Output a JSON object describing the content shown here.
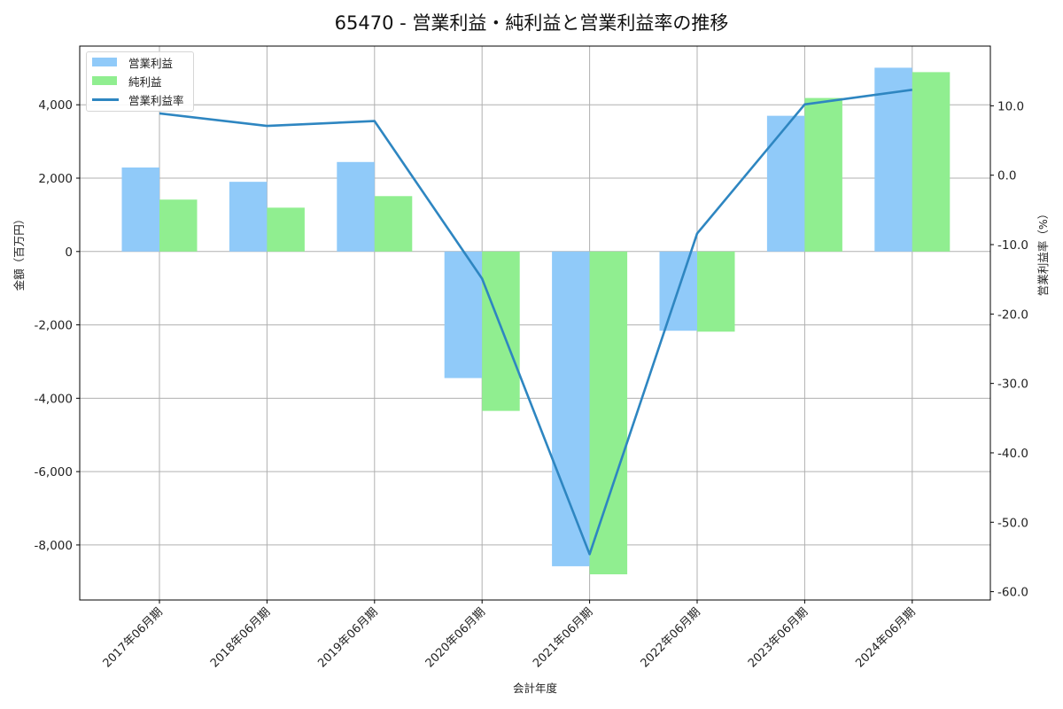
{
  "title": "65470 - 営業利益・純利益と営業利益率の推移",
  "chart_data": {
    "type": "bar",
    "title": "65470 - 営業利益・純利益と営業利益率の推移",
    "xlabel": "会計年度",
    "ylabel": "金額（百万円）",
    "y2label": "営業利益率（%）",
    "categories": [
      "2017年06月期",
      "2018年06月期",
      "2019年06月期",
      "2020年06月期",
      "2021年06月期",
      "2022年06月期",
      "2023年06月期",
      "2024年06月期"
    ],
    "series": [
      {
        "name": "営業利益",
        "type": "bar",
        "axis": "left",
        "color": "#90caf9",
        "values": [
          2290,
          1900,
          2440,
          -3450,
          -8580,
          -2160,
          3700,
          5010
        ]
      },
      {
        "name": "純利益",
        "type": "bar",
        "axis": "left",
        "color": "#90ee90",
        "values": [
          1415,
          1195,
          1510,
          -4345,
          -8800,
          -2185,
          4185,
          4890
        ]
      },
      {
        "name": "営業利益率",
        "type": "line",
        "axis": "right",
        "color": "#2e86c1",
        "values": [
          8.9,
          7.1,
          7.8,
          -14.9,
          -54.6,
          -8.4,
          10.2,
          12.3
        ]
      }
    ],
    "ylim": [
      -9500,
      5600
    ],
    "y2lim": [
      -61.2,
      18.6
    ],
    "yticks": [
      -8000,
      -6000,
      -4000,
      -2000,
      0,
      2000,
      4000
    ],
    "ytick_labels": [
      "-8,000",
      "-6,000",
      "-4,000",
      "-2,000",
      "0",
      "2,000",
      "4,000"
    ],
    "y2ticks": [
      -60,
      -50,
      -40,
      -30,
      -20,
      -10,
      0,
      10
    ],
    "y2tick_labels": [
      "-60.0",
      "-50.0",
      "-40.0",
      "-30.0",
      "-20.0",
      "-10.0",
      "0.0",
      "10.0"
    ],
    "grid": true,
    "legend_position": "upper left"
  },
  "legend": [
    {
      "label": "営業利益",
      "kind": "bar",
      "color": "#90caf9"
    },
    {
      "label": "純利益",
      "kind": "bar",
      "color": "#90ee90"
    },
    {
      "label": "営業利益率",
      "kind": "line",
      "color": "#2e86c1"
    }
  ]
}
